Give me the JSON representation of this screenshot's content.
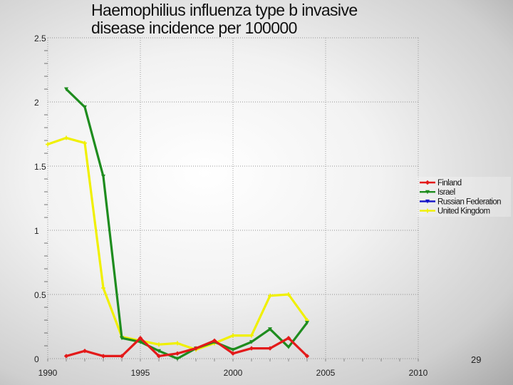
{
  "chart_data": {
    "type": "line",
    "title_lines": [
      "Haemophilius influenza type b invasive",
      "disease incidence per 100000"
    ],
    "xlabel": "",
    "ylabel": "",
    "xlim": [
      1990,
      2010
    ],
    "ylim": [
      0,
      2.5
    ],
    "x_ticks": [
      "1990",
      "1995",
      "2000",
      "2005",
      "2010"
    ],
    "y_ticks": [
      "0",
      "0.5",
      "1",
      "1.5",
      "2",
      "2.5"
    ],
    "grid": "vertical dotted at 5-year ticks, horizontal dotted at 0.5 steps",
    "legend_position": "right",
    "series": [
      {
        "name": "Finland",
        "color": "#e31a1a",
        "marker": "diamond",
        "x": [
          1991,
          1992,
          1993,
          1994,
          1995,
          1996,
          1997,
          1998,
          1999,
          2000,
          2001,
          2002,
          2003,
          2004
        ],
        "y": [
          0.02,
          0.06,
          0.02,
          0.02,
          0.16,
          0.02,
          0.04,
          0.08,
          0.14,
          0.04,
          0.08,
          0.08,
          0.16,
          0.02
        ]
      },
      {
        "name": "Israel",
        "color": "#1e8c1e",
        "marker": "triangle",
        "x": [
          1991,
          1992,
          1993,
          1994,
          1995,
          1996,
          1997,
          1998,
          1999,
          2000,
          2001,
          2002,
          2003,
          2004
        ],
        "y": [
          2.1,
          1.96,
          1.42,
          0.16,
          0.13,
          0.06,
          0.0,
          0.08,
          0.13,
          0.07,
          0.13,
          0.23,
          0.09,
          0.28
        ]
      },
      {
        "name": "Russian Federation",
        "color": "#1414c8",
        "marker": "triangle",
        "x": [],
        "y": []
      },
      {
        "name": "United Kingdom",
        "color": "#f0f000",
        "marker": "star",
        "x": [
          1990,
          1991,
          1992,
          1993,
          1994,
          1995,
          1996,
          1997,
          1998,
          1999,
          2000,
          2001,
          2002,
          2003,
          2004
        ],
        "y": [
          1.67,
          1.72,
          1.68,
          0.55,
          0.17,
          0.14,
          0.11,
          0.12,
          0.07,
          0.12,
          0.18,
          0.18,
          0.49,
          0.5,
          0.3
        ]
      }
    ]
  },
  "page_number": "29"
}
